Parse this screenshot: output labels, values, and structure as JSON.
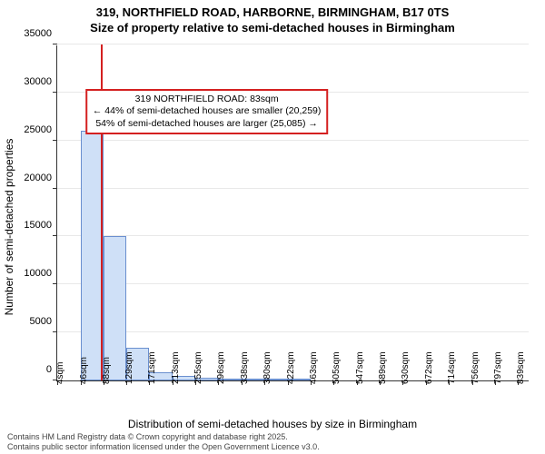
{
  "title": {
    "line1": "319, NORTHFIELD ROAD, HARBORNE, BIRMINGHAM, B17 0TS",
    "line2": "Size of property relative to semi-detached houses in Birmingham",
    "fontsize": 13,
    "fontweight": "bold"
  },
  "chart": {
    "type": "histogram",
    "background_color": "#ffffff",
    "grid_color": "#e8e8e8",
    "axis_color": "#333333",
    "ylabel": "Number of semi-detached properties",
    "xlabel": "Distribution of semi-detached houses by size in Birmingham",
    "label_fontsize": 12,
    "ylim": [
      0,
      35000
    ],
    "ytick_step": 5000,
    "yticks": [
      0,
      5000,
      10000,
      15000,
      20000,
      25000,
      30000,
      35000
    ],
    "xlim": [
      4,
      860
    ],
    "xticks": [
      4,
      46,
      88,
      129,
      171,
      213,
      255,
      296,
      338,
      380,
      422,
      463,
      505,
      547,
      589,
      630,
      672,
      714,
      756,
      797,
      839
    ],
    "xtick_labels": [
      "4sqm",
      "46sqm",
      "88sqm",
      "129sqm",
      "171sqm",
      "213sqm",
      "255sqm",
      "296sqm",
      "338sqm",
      "380sqm",
      "422sqm",
      "463sqm",
      "505sqm",
      "547sqm",
      "589sqm",
      "630sqm",
      "672sqm",
      "714sqm",
      "756sqm",
      "797sqm",
      "839sqm"
    ],
    "xtick_fontsize": 10,
    "bar_fill": "#cfe0f7",
    "bar_stroke": "#6a8fcf",
    "bars": [
      {
        "x0": 46,
        "x1": 88,
        "count": 26000
      },
      {
        "x0": 88,
        "x1": 129,
        "count": 15000
      },
      {
        "x0": 129,
        "x1": 171,
        "count": 3400
      },
      {
        "x0": 171,
        "x1": 213,
        "count": 900
      },
      {
        "x0": 213,
        "x1": 255,
        "count": 500
      },
      {
        "x0": 255,
        "x1": 296,
        "count": 250
      },
      {
        "x0": 296,
        "x1": 338,
        "count": 150
      },
      {
        "x0": 338,
        "x1": 380,
        "count": 100
      },
      {
        "x0": 380,
        "x1": 422,
        "count": 70
      },
      {
        "x0": 422,
        "x1": 463,
        "count": 50
      }
    ],
    "highlight": {
      "x": 83,
      "color": "#d42020"
    },
    "annotation": {
      "line1": "319 NORTHFIELD ROAD: 83sqm",
      "line2": "← 44% of semi-detached houses are smaller (20,259)",
      "line3": "54% of semi-detached houses are larger (25,085) →",
      "border_color": "#d42020",
      "bg_color": "#ffffff",
      "x_center": 275,
      "y_top": 30500,
      "fontsize": 10.5
    }
  },
  "footer": {
    "line1": "Contains HM Land Registry data © Crown copyright and database right 2025.",
    "line2": "Contains public sector information licensed under the Open Government Licence v3.0.",
    "fontsize": 9,
    "color": "#444444"
  }
}
